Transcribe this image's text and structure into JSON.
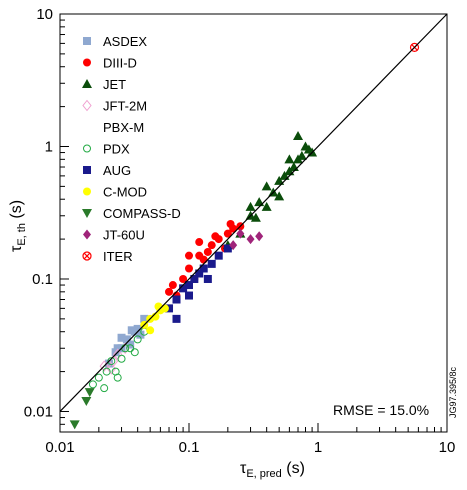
{
  "chart_data": {
    "type": "scatter",
    "x_scale": "log",
    "y_scale": "log",
    "xlim": [
      0.01,
      10
    ],
    "ylim": [
      0.007,
      10
    ],
    "grid": false,
    "legend_placement": "top-left",
    "x_ticks": [
      {
        "value": 0.01,
        "label": "0.01"
      },
      {
        "value": 0.1,
        "label": "0.1"
      },
      {
        "value": 1,
        "label": "1"
      },
      {
        "value": 10,
        "label": "10"
      }
    ],
    "y_ticks": [
      {
        "value": 0.01,
        "label": "0.01"
      },
      {
        "value": 0.1,
        "label": "0.1"
      },
      {
        "value": 1,
        "label": "1"
      },
      {
        "value": 10,
        "label": "10"
      }
    ],
    "xlabel": {
      "main": "τ",
      "sub": "E, pred",
      "unit": " (s)"
    },
    "ylabel": {
      "main": "τ",
      "sub": "E, th",
      "unit": " (s)"
    },
    "reference_line": {
      "type": "identity",
      "x": [
        0.01,
        10
      ],
      "y": [
        0.01,
        10
      ]
    },
    "annotation": "RMSE = 15.0%",
    "side_note": "JG97.395/8c",
    "series": [
      {
        "name": "ASDEX",
        "marker": "square",
        "color": "#8fa8d0",
        "points": [
          [
            0.024,
            0.023
          ],
          [
            0.027,
            0.028
          ],
          [
            0.03,
            0.03
          ],
          [
            0.033,
            0.035
          ],
          [
            0.035,
            0.032
          ],
          [
            0.038,
            0.04
          ],
          [
            0.04,
            0.042
          ],
          [
            0.03,
            0.036
          ],
          [
            0.042,
            0.038
          ],
          [
            0.045,
            0.05
          ],
          [
            0.028,
            0.03
          ],
          [
            0.036,
            0.041
          ]
        ]
      },
      {
        "name": "DIII-D",
        "marker": "circle",
        "color": "#ff0000",
        "points": [
          [
            0.06,
            0.06
          ],
          [
            0.08,
            0.075
          ],
          [
            0.1,
            0.12
          ],
          [
            0.12,
            0.15
          ],
          [
            0.15,
            0.18
          ],
          [
            0.17,
            0.2
          ],
          [
            0.2,
            0.22
          ],
          [
            0.22,
            0.24
          ],
          [
            0.13,
            0.14
          ],
          [
            0.09,
            0.1
          ],
          [
            0.075,
            0.09
          ],
          [
            0.11,
            0.1
          ],
          [
            0.14,
            0.16
          ],
          [
            0.16,
            0.21
          ],
          [
            0.19,
            0.17
          ],
          [
            0.25,
            0.25
          ],
          [
            0.12,
            0.19
          ],
          [
            0.1,
            0.15
          ],
          [
            0.07,
            0.08
          ],
          [
            0.21,
            0.26
          ]
        ]
      },
      {
        "name": "JET",
        "marker": "triangle-up",
        "color": "#0b4d0b",
        "points": [
          [
            0.2,
            0.18
          ],
          [
            0.25,
            0.22
          ],
          [
            0.3,
            0.3
          ],
          [
            0.35,
            0.38
          ],
          [
            0.4,
            0.35
          ],
          [
            0.45,
            0.45
          ],
          [
            0.5,
            0.55
          ],
          [
            0.55,
            0.6
          ],
          [
            0.6,
            0.65
          ],
          [
            0.65,
            0.7
          ],
          [
            0.7,
            0.8
          ],
          [
            0.75,
            0.85
          ],
          [
            0.8,
            1.0
          ],
          [
            0.85,
            0.95
          ],
          [
            0.9,
            0.9
          ],
          [
            0.7,
            1.2
          ],
          [
            0.6,
            0.8
          ],
          [
            0.5,
            0.42
          ],
          [
            0.4,
            0.5
          ],
          [
            0.3,
            0.35
          ],
          [
            0.33,
            0.29
          ]
        ]
      },
      {
        "name": "JFT-2M",
        "marker": "diamond-open",
        "color": "#f0a0d0",
        "points": [
          [
            0.022,
            0.022
          ],
          [
            0.026,
            0.024
          ],
          [
            0.028,
            0.027
          ],
          [
            0.032,
            0.03
          ],
          [
            0.025,
            0.021
          ]
        ]
      },
      {
        "name": "PBX-M",
        "marker": "none",
        "color": "#000000",
        "points": []
      },
      {
        "name": "PDX",
        "marker": "circle-open",
        "color": "#22aa44",
        "points": [
          [
            0.018,
            0.016
          ],
          [
            0.02,
            0.018
          ],
          [
            0.023,
            0.02
          ],
          [
            0.025,
            0.024
          ],
          [
            0.027,
            0.02
          ],
          [
            0.03,
            0.025
          ],
          [
            0.032,
            0.03
          ],
          [
            0.035,
            0.03
          ],
          [
            0.04,
            0.035
          ],
          [
            0.045,
            0.04
          ],
          [
            0.022,
            0.015
          ],
          [
            0.028,
            0.018
          ],
          [
            0.038,
            0.028
          ]
        ]
      },
      {
        "name": "AUG",
        "marker": "square",
        "color": "#1a1a8c",
        "points": [
          [
            0.07,
            0.06
          ],
          [
            0.08,
            0.07
          ],
          [
            0.09,
            0.085
          ],
          [
            0.1,
            0.09
          ],
          [
            0.11,
            0.1
          ],
          [
            0.12,
            0.11
          ],
          [
            0.13,
            0.12
          ],
          [
            0.15,
            0.13
          ],
          [
            0.17,
            0.15
          ],
          [
            0.2,
            0.17
          ],
          [
            0.1,
            0.075
          ],
          [
            0.14,
            0.1
          ],
          [
            0.08,
            0.05
          ]
        ]
      },
      {
        "name": "C-MOD",
        "marker": "circle",
        "color": "#ffff00",
        "points": [
          [
            0.045,
            0.045
          ],
          [
            0.05,
            0.05
          ],
          [
            0.055,
            0.052
          ],
          [
            0.06,
            0.058
          ],
          [
            0.065,
            0.06
          ],
          [
            0.05,
            0.041
          ],
          [
            0.058,
            0.062
          ]
        ]
      },
      {
        "name": "COMPASS-D",
        "marker": "triangle-down",
        "color": "#2a7a2a",
        "points": [
          [
            0.013,
            0.008
          ],
          [
            0.016,
            0.012
          ],
          [
            0.017,
            0.014
          ]
        ]
      },
      {
        "name": "JT-60U",
        "marker": "diamond",
        "color": "#a0247a",
        "points": [
          [
            0.25,
            0.22
          ],
          [
            0.3,
            0.2
          ],
          [
            0.35,
            0.21
          ],
          [
            0.22,
            0.18
          ]
        ]
      },
      {
        "name": "ITER",
        "marker": "circle-x",
        "color": "#ff0000",
        "points": [
          [
            5.6,
            5.6
          ]
        ]
      }
    ]
  }
}
